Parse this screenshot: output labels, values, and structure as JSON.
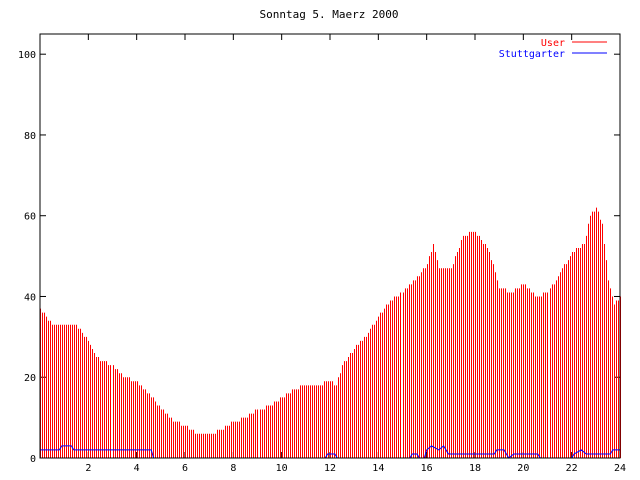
{
  "chart_data": {
    "type": "bar",
    "title": "Sonntag 5. Maerz 2000",
    "xlabel": "",
    "ylabel": "",
    "xlim": [
      0,
      24
    ],
    "ylim": [
      0,
      105
    ],
    "x_ticks": [
      2,
      4,
      6,
      8,
      10,
      12,
      14,
      16,
      18,
      20,
      22,
      24
    ],
    "y_ticks": [
      0,
      20,
      40,
      60,
      80,
      100
    ],
    "grid": false,
    "legend_position": "top-right",
    "series": [
      {
        "name": "User",
        "type": "impulses",
        "color": "#ff0000",
        "knots": [
          [
            0,
            37
          ],
          [
            0.25,
            35
          ],
          [
            0.5,
            33
          ],
          [
            1.0,
            33
          ],
          [
            1.5,
            33
          ],
          [
            2.0,
            29
          ],
          [
            2.25,
            26
          ],
          [
            2.5,
            24
          ],
          [
            3.0,
            23
          ],
          [
            3.5,
            20
          ],
          [
            4.0,
            19
          ],
          [
            4.5,
            16
          ],
          [
            5.0,
            12
          ],
          [
            5.5,
            9
          ],
          [
            6.0,
            8
          ],
          [
            6.5,
            6
          ],
          [
            7.0,
            6
          ],
          [
            7.5,
            7
          ],
          [
            8.0,
            9
          ],
          [
            8.5,
            10
          ],
          [
            9.0,
            12
          ],
          [
            9.5,
            13
          ],
          [
            10.0,
            15
          ],
          [
            10.5,
            17
          ],
          [
            11.0,
            18
          ],
          [
            11.5,
            18
          ],
          [
            12.0,
            19
          ],
          [
            12.25,
            18
          ],
          [
            12.5,
            23
          ],
          [
            13.0,
            27
          ],
          [
            13.5,
            30
          ],
          [
            14.0,
            35
          ],
          [
            14.5,
            39
          ],
          [
            15.0,
            41
          ],
          [
            15.5,
            44
          ],
          [
            16.0,
            48
          ],
          [
            16.25,
            53
          ],
          [
            16.5,
            47
          ],
          [
            17.0,
            47
          ],
          [
            17.5,
            55
          ],
          [
            18.0,
            56
          ],
          [
            18.5,
            52
          ],
          [
            18.75,
            48
          ],
          [
            19.0,
            42
          ],
          [
            19.5,
            41
          ],
          [
            20.0,
            43
          ],
          [
            20.5,
            40
          ],
          [
            21.0,
            41
          ],
          [
            21.5,
            46
          ],
          [
            22.0,
            51
          ],
          [
            22.5,
            53
          ],
          [
            22.75,
            60
          ],
          [
            23.0,
            62
          ],
          [
            23.25,
            58
          ],
          [
            23.5,
            44
          ],
          [
            23.75,
            38
          ],
          [
            24.0,
            40
          ]
        ]
      },
      {
        "name": "Stuttgarter",
        "type": "line",
        "color": "#0000ff",
        "points": [
          [
            0,
            2
          ],
          [
            0.8,
            2
          ],
          [
            0.9,
            3
          ],
          [
            1.3,
            3
          ],
          [
            1.4,
            2
          ],
          [
            4.6,
            2
          ],
          [
            4.7,
            0
          ],
          [
            11.8,
            0
          ],
          [
            11.9,
            1
          ],
          [
            12.2,
            1
          ],
          [
            12.3,
            0
          ],
          [
            15.3,
            0
          ],
          [
            15.4,
            1
          ],
          [
            15.6,
            1
          ],
          [
            15.7,
            0
          ],
          [
            15.9,
            0
          ],
          [
            16.0,
            2
          ],
          [
            16.2,
            3
          ],
          [
            16.5,
            2
          ],
          [
            16.7,
            3
          ],
          [
            16.9,
            1
          ],
          [
            18.8,
            1
          ],
          [
            18.9,
            2
          ],
          [
            19.2,
            2
          ],
          [
            19.3,
            1
          ],
          [
            19.4,
            0
          ],
          [
            19.6,
            1
          ],
          [
            20.6,
            1
          ],
          [
            20.7,
            0
          ],
          [
            22.0,
            0
          ],
          [
            22.1,
            1
          ],
          [
            22.4,
            2
          ],
          [
            22.6,
            1
          ],
          [
            23.6,
            1
          ],
          [
            23.7,
            2
          ],
          [
            24.0,
            2
          ]
        ]
      }
    ]
  }
}
